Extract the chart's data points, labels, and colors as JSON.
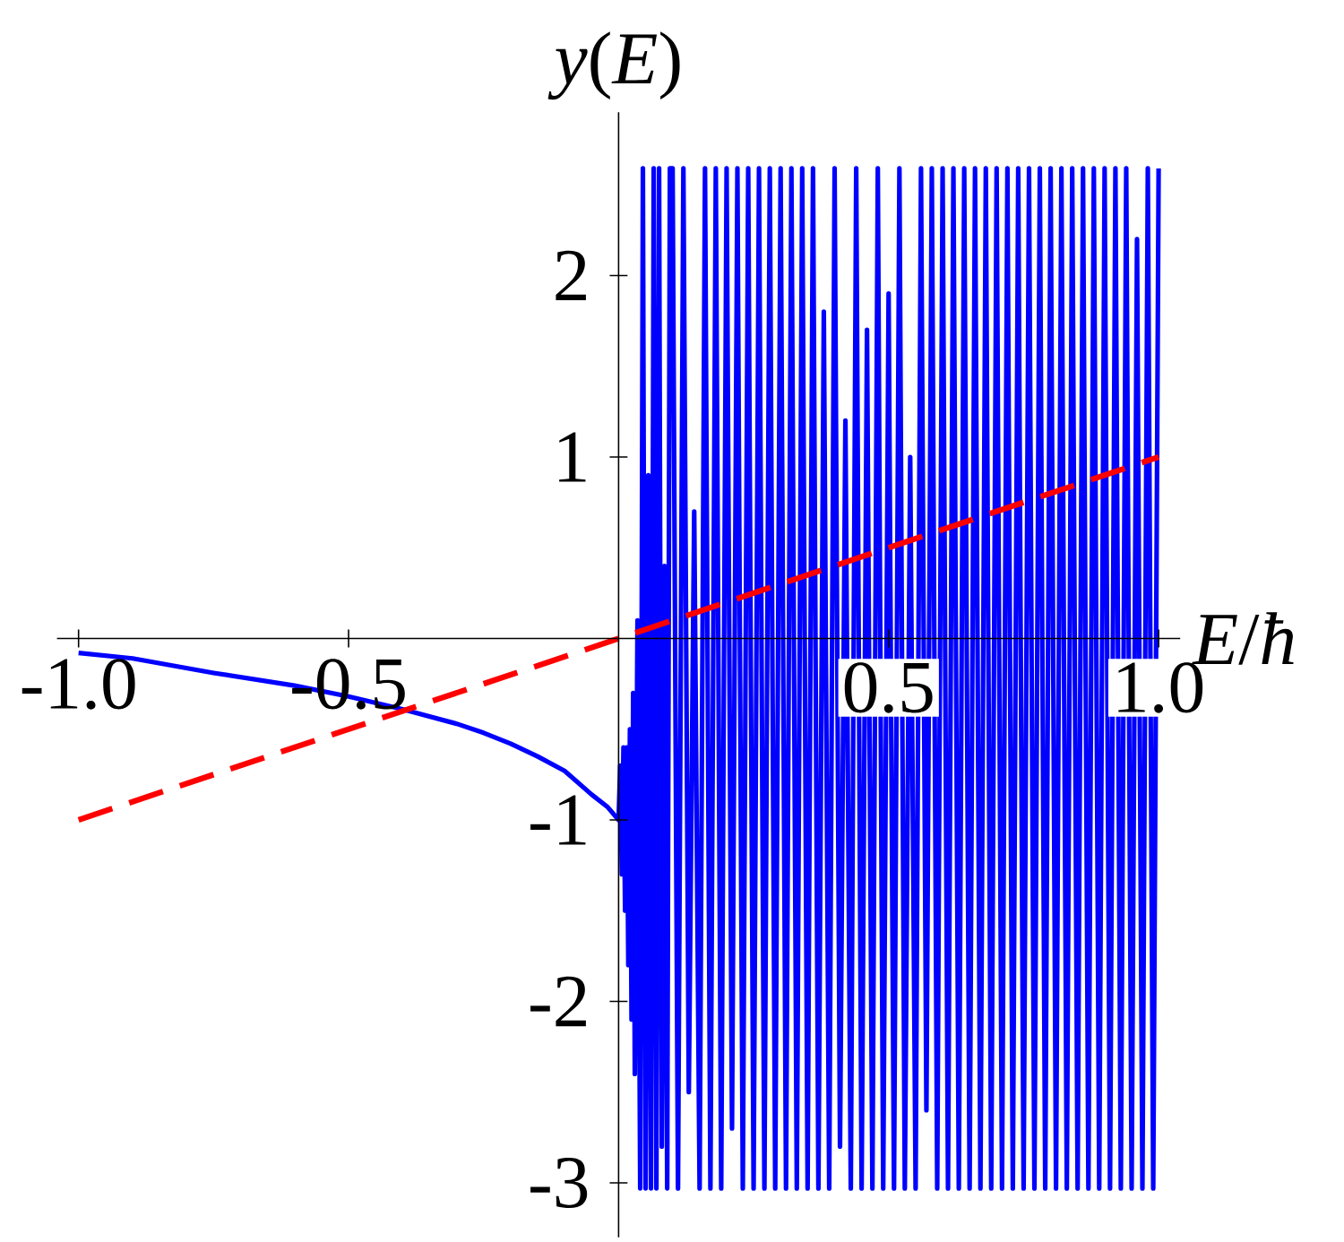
{
  "chart_data": {
    "type": "line",
    "xlabel": "*E*/*ħ*",
    "ylabel": "*y*(*E*)",
    "xlim": [
      -1.04,
      1.04
    ],
    "ylim": [
      -3.3,
      2.9
    ],
    "xticks": [
      {
        "value": -1,
        "label": "-1.0"
      },
      {
        "value": -0.5,
        "label": "-0.5"
      },
      {
        "value": 0.5,
        "label": "0.5"
      },
      {
        "value": 1,
        "label": "1.0"
      }
    ],
    "yticks": [
      -3,
      -2,
      -1,
      1,
      2
    ],
    "grid": false,
    "marker": "none",
    "series": [
      {
        "color": "#0000ff",
        "line_style": "solid",
        "x": [
          -1,
          -0.9,
          -0.75,
          -0.6,
          -0.5,
          -0.4,
          -0.3,
          -0.25,
          -0.2,
          -0.15,
          -0.1,
          -0.05,
          -0.02,
          0,
          0.003,
          0.006,
          0.009,
          0.012,
          0.015,
          0.018,
          0.021,
          0.024,
          0.027,
          0.03,
          0.035,
          0.04,
          0.045,
          0.05,
          0.055,
          0.06,
          0.065,
          0.07,
          0.075,
          0.08,
          0.085,
          0.09,
          0.095,
          0.1,
          0.11,
          0.12,
          0.13,
          0.14,
          0.15,
          0.16,
          0.17,
          0.18,
          0.19,
          0.2,
          0.21,
          0.22,
          0.23,
          0.24,
          0.25,
          0.26,
          0.27,
          0.28,
          0.29,
          0.3,
          0.31,
          0.32,
          0.33,
          0.34,
          0.35,
          0.36,
          0.37,
          0.38,
          0.39,
          0.4,
          0.41,
          0.42,
          0.43,
          0.44,
          0.45,
          0.46,
          0.47,
          0.48,
          0.49,
          0.5,
          0.51,
          0.52,
          0.53,
          0.54,
          0.55,
          0.56,
          0.57,
          0.58,
          0.59,
          0.6,
          0.61,
          0.62,
          0.63,
          0.64,
          0.65,
          0.66,
          0.67,
          0.68,
          0.69,
          0.7,
          0.71,
          0.72,
          0.73,
          0.74,
          0.75,
          0.76,
          0.77,
          0.78,
          0.79,
          0.8,
          0.81,
          0.82,
          0.83,
          0.84,
          0.85,
          0.86,
          0.87,
          0.88,
          0.89,
          0.9,
          0.91,
          0.92,
          0.93,
          0.94,
          0.95,
          0.96,
          0.97,
          0.98,
          0.99,
          1.0
        ],
        "values": [
          -0.08,
          -0.11,
          -0.19,
          -0.26,
          -0.32,
          -0.39,
          -0.47,
          -0.52,
          -0.58,
          -0.65,
          -0.73,
          -0.86,
          -0.93,
          -1.0,
          -0.7,
          -1.3,
          -0.6,
          -1.5,
          -0.6,
          -1.8,
          -0.5,
          -2.1,
          -0.3,
          -2.4,
          0.1,
          -3.03,
          2.59,
          -3.03,
          0.9,
          -3.03,
          2.59,
          -3.03,
          2.59,
          -2.8,
          0.4,
          -3.03,
          2.59,
          2.59,
          -3.03,
          2.59,
          -2.5,
          0.7,
          -3.03,
          2.59,
          -3.03,
          2.59,
          -3.03,
          2.59,
          -2.7,
          2.59,
          -3.03,
          2.59,
          -3.03,
          2.59,
          -3.03,
          2.59,
          -3.03,
          2.59,
          -3.03,
          2.59,
          -3.03,
          2.59,
          -3.03,
          2.59,
          -3.03,
          1.8,
          -3.03,
          2.59,
          -2.8,
          1.2,
          -3.03,
          2.59,
          -3.03,
          1.7,
          -3.03,
          2.59,
          -3.03,
          1.9,
          -3.03,
          2.59,
          -3.03,
          1.0,
          -3.03,
          2.59,
          -2.6,
          2.59,
          -3.03,
          2.59,
          -3.03,
          2.59,
          -3.03,
          2.59,
          -3.03,
          2.59,
          -3.03,
          2.59,
          -3.03,
          2.59,
          -3.03,
          2.59,
          -3.03,
          2.59,
          -3.03,
          2.59,
          -3.03,
          2.59,
          -3.03,
          2.59,
          -3.03,
          2.59,
          -3.03,
          2.59,
          -3.03,
          2.59,
          -3.03,
          2.59,
          -3.03,
          2.59,
          -3.03,
          2.59,
          -3.03,
          2.59,
          -3.03,
          2.2,
          -3.03,
          2.59,
          -3.03,
          2.59
        ]
      },
      {
        "color": "#ff0000",
        "line_style": "dashed",
        "x": [
          -1,
          1
        ],
        "values": [
          -1,
          1
        ]
      }
    ]
  }
}
